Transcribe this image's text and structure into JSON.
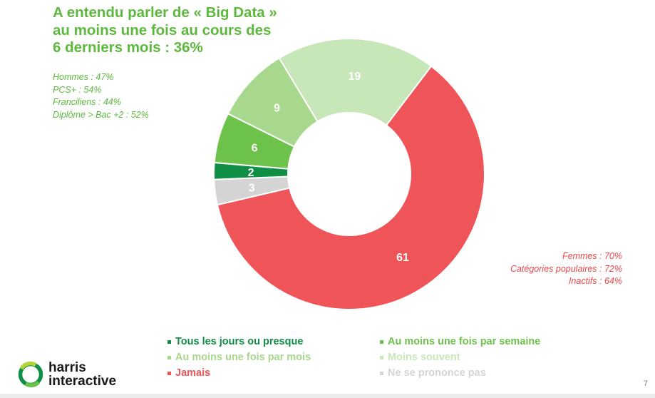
{
  "title_lines": [
    "A entendu parler de « Big Data »",
    "au moins une fois au cours des",
    "6 derniers mois : 36%"
  ],
  "notes_left": [
    "Hommes : 47%",
    "PCS+ : 54%",
    "Franciliens : 44%",
    "Diplôme > Bac +2 : 52%"
  ],
  "notes_right": [
    "Femmes : 70%",
    "Catégories populaires : 72%",
    "Inactifs : 64%"
  ],
  "chart_data": {
    "type": "pie",
    "donut": true,
    "start_angle_deg": -52.74,
    "categories": [
      "Jamais",
      "Ne se prononce pas",
      "Tous les jours ou presque",
      "Au moins une fois par semaine",
      "Au moins une fois par mois",
      "Moins souvent"
    ],
    "values": [
      61,
      3,
      2,
      6,
      9,
      19
    ],
    "colors": [
      "#ef5459",
      "#d4d4d4",
      "#0f8e45",
      "#6cc24a",
      "#a7d88d",
      "#c8e7b8"
    ],
    "data_labels": [
      "61",
      "3",
      "2",
      "6",
      "9",
      "19"
    ]
  },
  "legend": [
    {
      "label": "Tous les jours ou presque",
      "color": "#0f8e45"
    },
    {
      "label": "Au moins une fois par semaine",
      "color": "#6cc24a"
    },
    {
      "label": "Au moins une fois par mois",
      "color": "#a7d88d"
    },
    {
      "label": "Moins souvent",
      "color": "#c8e7b8"
    },
    {
      "label": "Jamais",
      "color": "#ef5459"
    },
    {
      "label": "Ne se prononce pas",
      "color": "#d4d4d4"
    }
  ],
  "logo": {
    "line1": "harris",
    "line2": "interactive"
  },
  "page_number": "7"
}
